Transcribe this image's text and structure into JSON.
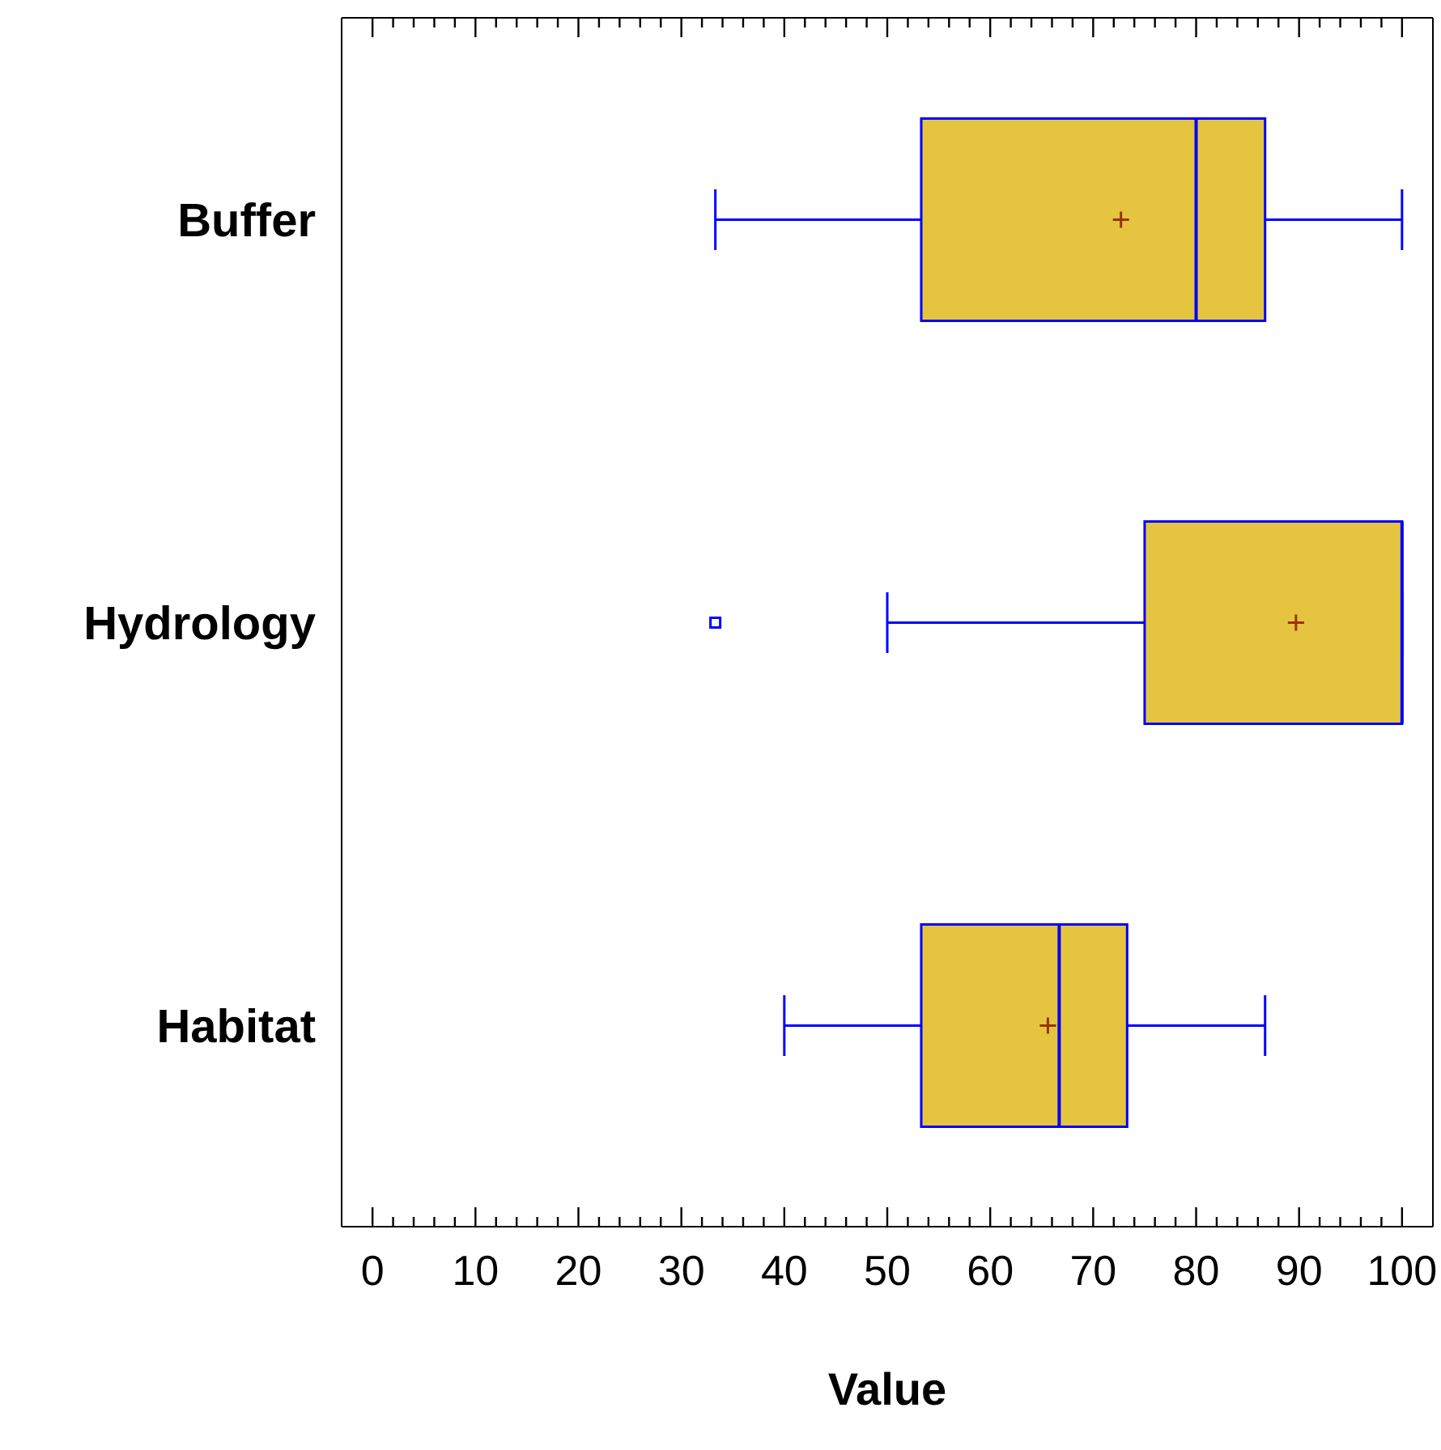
{
  "chart_data": {
    "type": "box",
    "orientation": "horizontal",
    "xlabel": "Value",
    "categories": [
      "Buffer",
      "Hydrology",
      "Habitat"
    ],
    "color": "#e5c440",
    "boxes": [
      {
        "low": 33.3,
        "q1": 53.3,
        "median": 80,
        "q3": 86.7,
        "high": 100,
        "mean": 72.7
      },
      {
        "low": 50,
        "q1": 75,
        "median": 100,
        "q3": 100,
        "high": 100,
        "mean": 89.7,
        "outliers": [
          33.3
        ]
      },
      {
        "low": 40,
        "q1": 53.3,
        "median": 66.7,
        "q3": 73.3,
        "high": 86.7,
        "mean": 65.6
      }
    ],
    "xlim": [
      -3,
      103
    ],
    "xticks": [
      0,
      {
        "value": 2,
        "label": null
      },
      {
        "value": 4,
        "label": null
      },
      {
        "value": 6,
        "label": null
      },
      {
        "value": 8,
        "label": null
      },
      10,
      {
        "value": 12,
        "label": null
      },
      {
        "value": 14,
        "label": null
      },
      {
        "value": 16,
        "label": null
      },
      {
        "value": 18,
        "label": null
      },
      20,
      {
        "value": 22,
        "label": null
      },
      {
        "value": 24,
        "label": null
      },
      {
        "value": 26,
        "label": null
      },
      {
        "value": 28,
        "label": null
      },
      30,
      {
        "value": 32,
        "label": null
      },
      {
        "value": 34,
        "label": null
      },
      {
        "value": 36,
        "label": null
      },
      {
        "value": 38,
        "label": null
      },
      40,
      {
        "value": 42,
        "label": null
      },
      {
        "value": 44,
        "label": null
      },
      {
        "value": 46,
        "label": null
      },
      {
        "value": 48,
        "label": null
      },
      50,
      {
        "value": 52,
        "label": null
      },
      {
        "value": 54,
        "label": null
      },
      {
        "value": 56,
        "label": null
      },
      {
        "value": 58,
        "label": null
      },
      60,
      {
        "value": 62,
        "label": null
      },
      {
        "value": 64,
        "label": null
      },
      {
        "value": 66,
        "label": null
      },
      {
        "value": 68,
        "label": null
      },
      70,
      {
        "value": 72,
        "label": null
      },
      {
        "value": 74,
        "label": null
      },
      {
        "value": 76,
        "label": null
      },
      {
        "value": 78,
        "label": null
      },
      80,
      {
        "value": 82,
        "label": null
      },
      {
        "value": 84,
        "label": null
      },
      {
        "value": 86,
        "label": null
      },
      {
        "value": 88,
        "label": null
      },
      90,
      {
        "value": 92,
        "label": null
      },
      {
        "value": 94,
        "label": null
      },
      {
        "value": 96,
        "label": null
      },
      {
        "value": 98,
        "label": null
      },
      100
    ]
  }
}
